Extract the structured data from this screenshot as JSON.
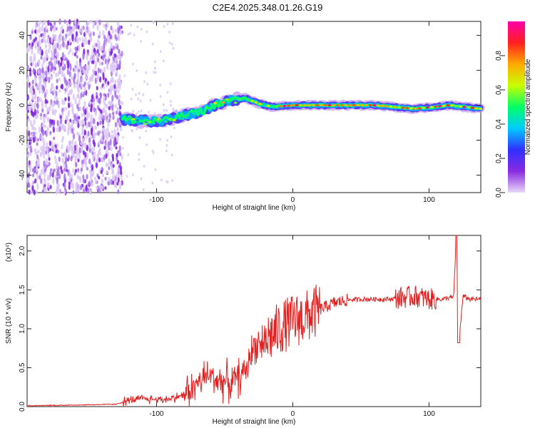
{
  "title": "C2E4.2025.348.01.26.G19",
  "chart_data": [
    {
      "type": "heatmap",
      "xlabel": "Height of straight line (km)",
      "ylabel": "Frequency (Hz)",
      "xlim": [
        -195,
        138
      ],
      "ylim": [
        -50,
        48
      ],
      "xticks": [
        -100,
        0,
        100
      ],
      "yticks": [
        -40,
        -20,
        0,
        20,
        40
      ],
      "colorbar": {
        "label": "Normalized spectral amplitude",
        "range": [
          0,
          1
        ],
        "ticks": [
          "0.0",
          "0.2",
          "0.4",
          "0.6",
          "0.8"
        ],
        "tick_values": [
          0.0,
          0.2,
          0.4,
          0.6,
          0.8
        ],
        "colormap": [
          "#e8d8f8",
          "#8a2be2",
          "#3030ff",
          "#00ccff",
          "#00ff66",
          "#c8ff00",
          "#ffaa00",
          "#ff2020",
          "#ff00aa"
        ]
      },
      "trace_ridge": [
        {
          "x": -125,
          "f": -8
        },
        {
          "x": -110,
          "f": -9
        },
        {
          "x": -95,
          "f": -9
        },
        {
          "x": -80,
          "f": -6
        },
        {
          "x": -65,
          "f": -3
        },
        {
          "x": -55,
          "f": 1
        },
        {
          "x": -45,
          "f": 3
        },
        {
          "x": -35,
          "f": 4
        },
        {
          "x": -25,
          "f": 1
        },
        {
          "x": -15,
          "f": -1
        },
        {
          "x": 0,
          "f": 0
        },
        {
          "x": 20,
          "f": 0
        },
        {
          "x": 60,
          "f": 0
        },
        {
          "x": 90,
          "f": -2
        },
        {
          "x": 115,
          "f": 0
        },
        {
          "x": 138,
          "f": -2
        }
      ]
    },
    {
      "type": "line",
      "xlabel": "Height of straight line (km)",
      "ylabel": "SNR (10 * v/v)",
      "y_scale_label": "(x10⁴)",
      "xlim": [
        -195,
        138
      ],
      "ylim": [
        0,
        2.2
      ],
      "xticks": [
        -100,
        0,
        100
      ],
      "yticks": [
        "0.0",
        "0.5",
        "1.0",
        "1.5",
        "2.0"
      ],
      "ytick_values": [
        0,
        0.5,
        1.0,
        1.5,
        2.0
      ],
      "color": "#e32020",
      "series": [
        {
          "name": "SNR",
          "x": [
            -195,
            -160,
            -130,
            -120,
            -110,
            -100,
            -90,
            -80,
            -70,
            -62,
            -55,
            -45,
            -35,
            -28,
            -20,
            -10,
            0,
            10,
            20,
            30,
            40,
            50,
            60,
            70,
            80,
            90,
            100,
            110,
            115,
            118,
            120,
            122,
            125,
            130,
            138
          ],
          "y": [
            0.01,
            0.02,
            0.03,
            0.08,
            0.1,
            0.09,
            0.1,
            0.15,
            0.3,
            0.4,
            0.35,
            0.3,
            0.45,
            0.8,
            0.85,
            1.0,
            1.1,
            1.15,
            1.25,
            1.33,
            1.37,
            1.38,
            1.38,
            1.38,
            1.4,
            1.42,
            1.38,
            1.38,
            1.4,
            1.4,
            2.1,
            0.85,
            1.42,
            1.38,
            1.38
          ]
        }
      ]
    }
  ]
}
